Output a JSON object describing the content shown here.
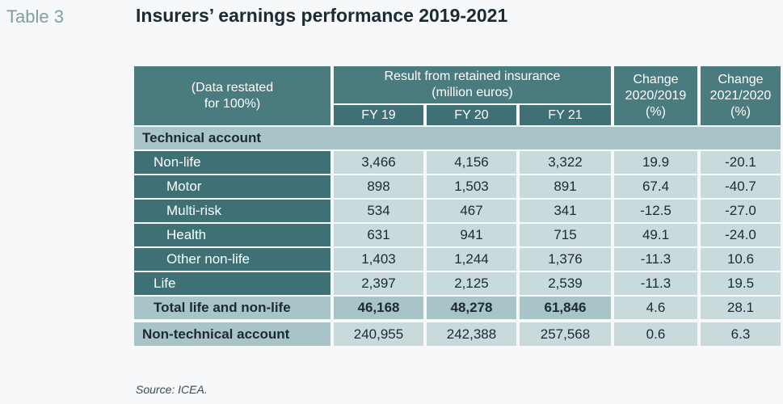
{
  "table_label": "Table 3",
  "title": "Insurers’ earnings performance 2019-2021",
  "header": {
    "restated_line1": "(Data restated",
    "restated_line2": "for 100%)",
    "result_line1": "Result from retained insurance",
    "result_line2": "(million euros)",
    "fy19": "FY 19",
    "fy20": "FY 20",
    "fy21": "FY 21",
    "change1_line1": "Change",
    "change1_line2": "2020/2019",
    "change1_line3": "(%)",
    "change2_line1": "Change",
    "change2_line2": "2021/2020",
    "change2_line3": "(%)"
  },
  "section_title": "Technical account",
  "rows": [
    {
      "label": "Non-life",
      "fy19": "3,466",
      "fy20": "4,156",
      "fy21": "3,322",
      "ch1": "19.9",
      "ch2": "-20.1"
    },
    {
      "label": "Motor",
      "fy19": "898",
      "fy20": "1,503",
      "fy21": "891",
      "ch1": "67.4",
      "ch2": "-40.7"
    },
    {
      "label": "Multi-risk",
      "fy19": "534",
      "fy20": "467",
      "fy21": "341",
      "ch1": "-12.5",
      "ch2": "-27.0"
    },
    {
      "label": "Health",
      "fy19": "631",
      "fy20": "941",
      "fy21": "715",
      "ch1": "49.1",
      "ch2": "-24.0"
    },
    {
      "label": "Other non-life",
      "fy19": "1,403",
      "fy20": "1,244",
      "fy21": "1,376",
      "ch1": "-11.3",
      "ch2": "10.6"
    },
    {
      "label": "Life",
      "fy19": "2,397",
      "fy20": "2,125",
      "fy21": "2,539",
      "ch1": "-11.3",
      "ch2": "19.5"
    }
  ],
  "total": {
    "label": "Total life and non-life",
    "fy19": "46,168",
    "fy20": "48,278",
    "fy21": "61,846",
    "ch1": "4.6",
    "ch2": "28.1"
  },
  "nontech": {
    "label": "Non-technical account",
    "fy19": "240,955",
    "fy20": "242,388",
    "fy21": "257,568",
    "ch1": "0.6",
    "ch2": "6.3"
  },
  "source": "Source: ICEA."
}
